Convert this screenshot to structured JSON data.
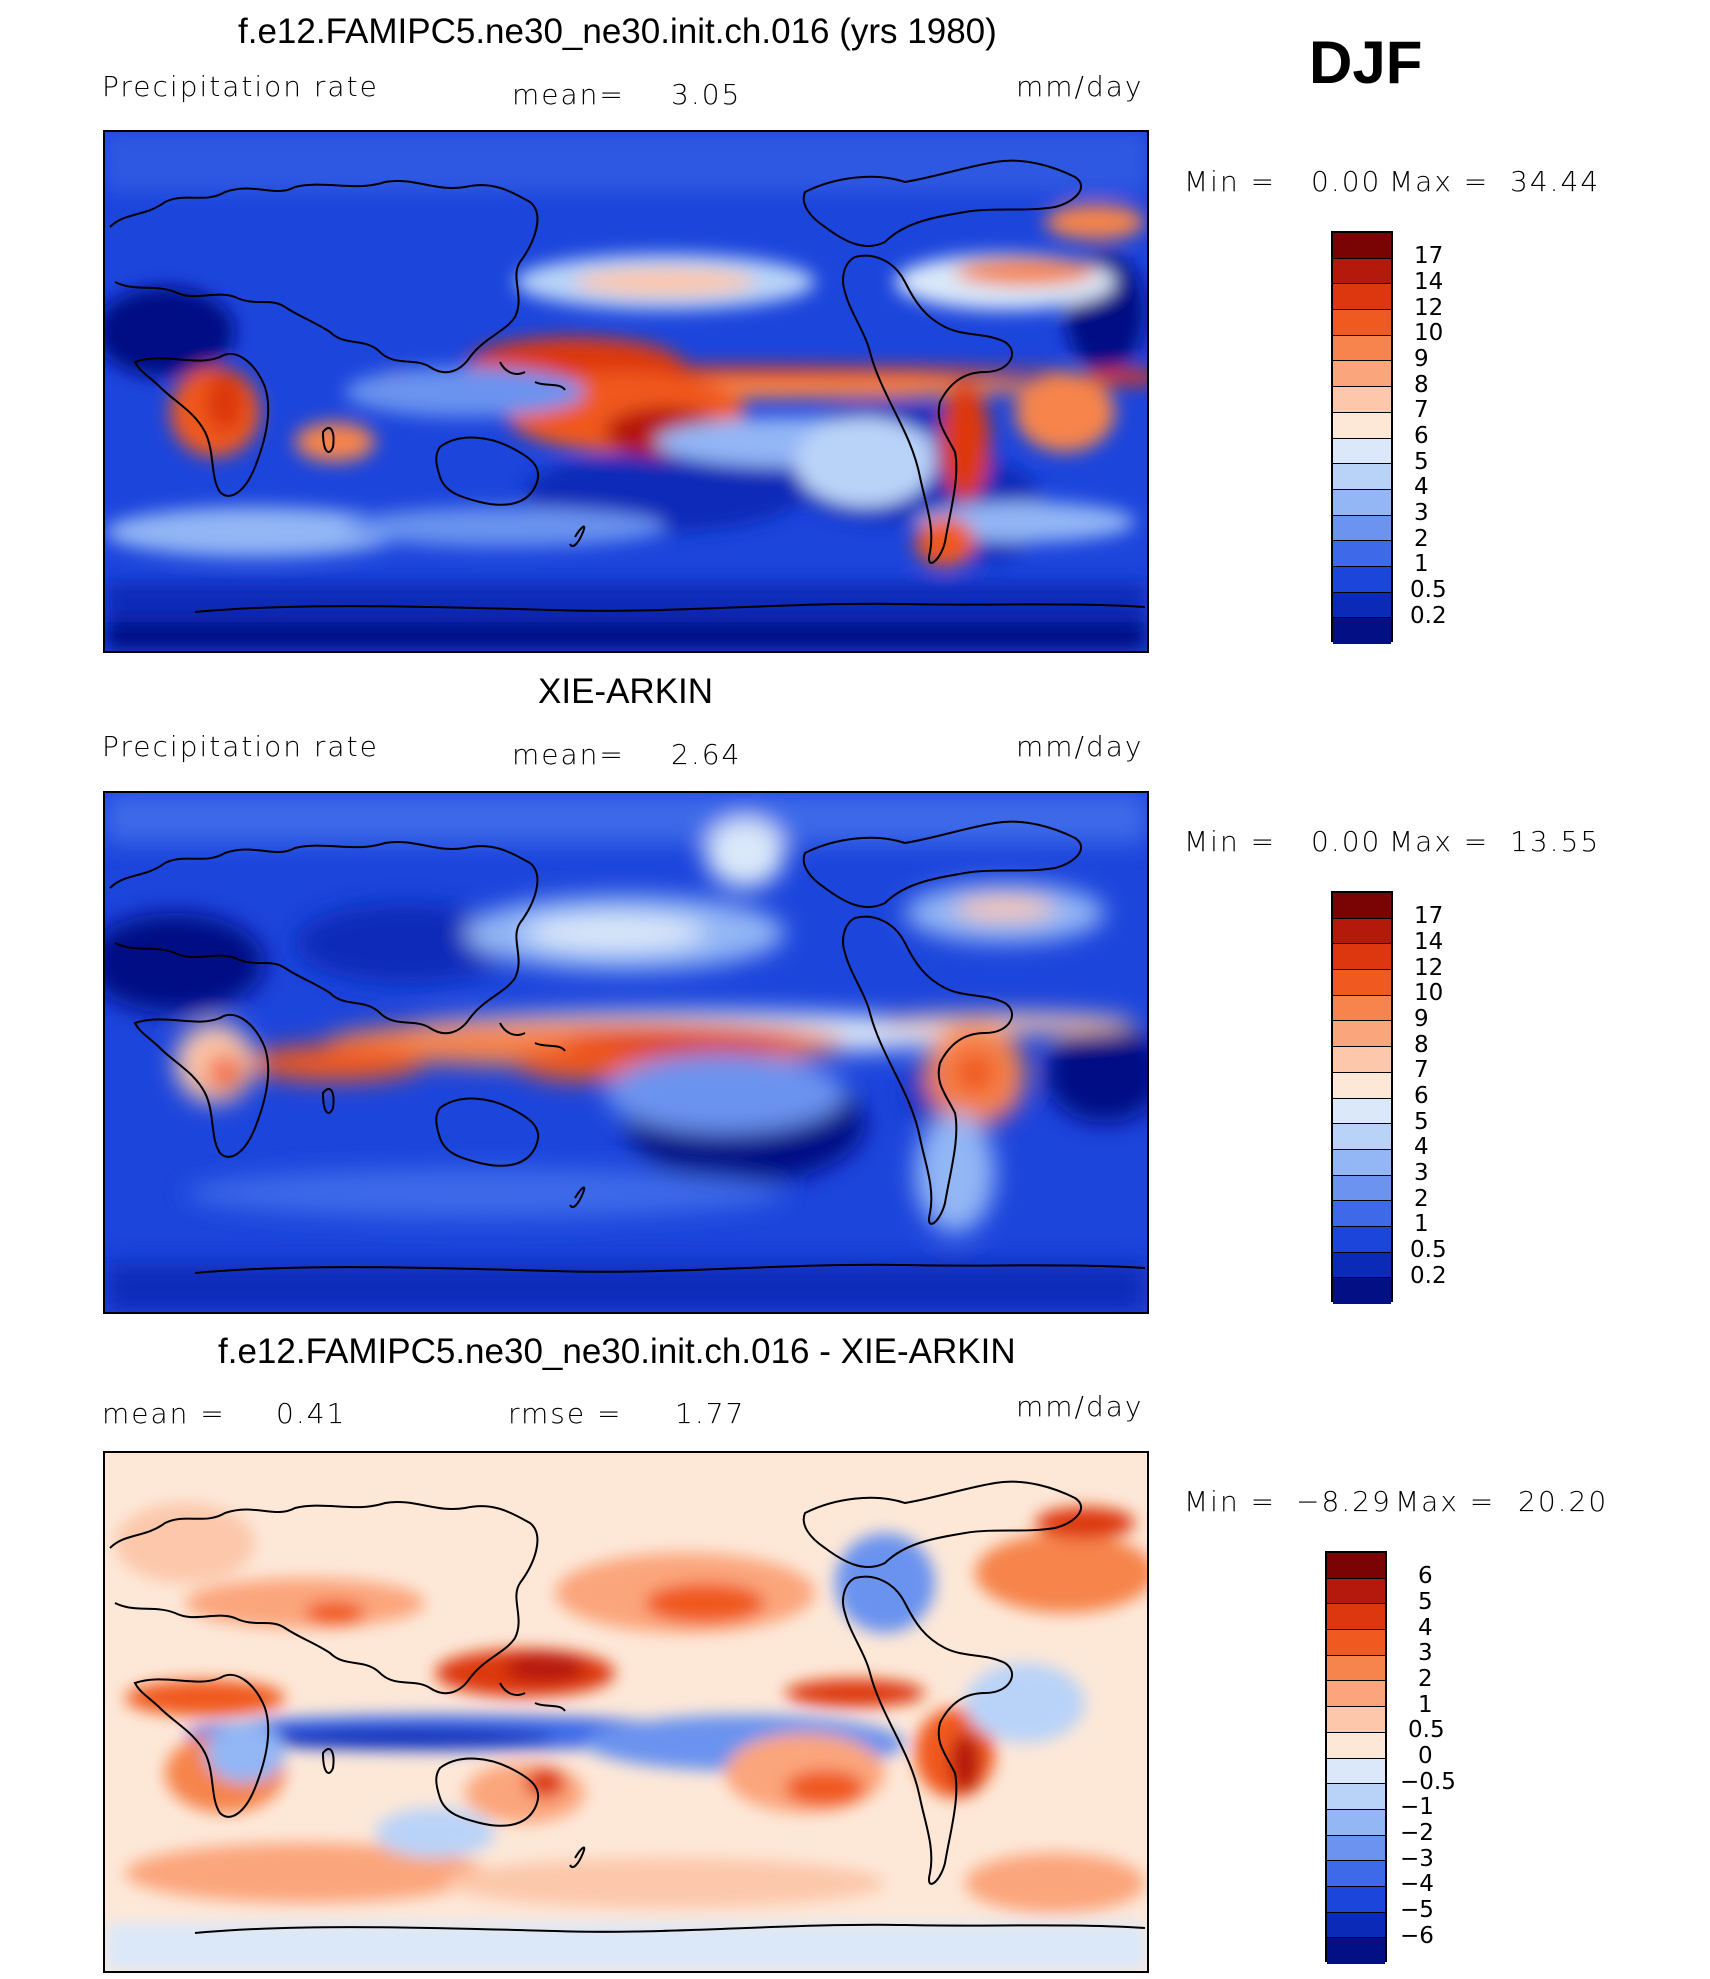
{
  "season": "DJF",
  "panels": [
    {
      "title": "f.e12.FAMIPC5.ne30_ne30.init.ch.016 (yrs 1980)",
      "left_label": "Precipitation  rate",
      "mid_label": "mean=",
      "mid_value": "3.05",
      "units": "mm/day",
      "min_label": "Min  =",
      "min_value": "0.00",
      "max_label": "Max  =",
      "max_value": "34.44",
      "colorbar_levels": [
        "17",
        "14",
        "12",
        "10",
        "9",
        "8",
        "7",
        "6",
        "5",
        "4",
        "3",
        "2",
        "1",
        "0.5",
        "0.2"
      ],
      "colorbar_colors": [
        "#7a0403",
        "#b5190b",
        "#dd3710",
        "#f0591f",
        "#f6844c",
        "#fba57c",
        "#fcc7aa",
        "#fde8d8",
        "#dae8f9",
        "#b9d3f8",
        "#93b6f5",
        "#6b93ef",
        "#3e6ae9",
        "#1c45dc",
        "#0b2ab8",
        "#030f84"
      ]
    },
    {
      "title": "XIE-ARKIN",
      "left_label": "Precipitation  rate",
      "mid_label": "mean=",
      "mid_value": "2.64",
      "units": "mm/day",
      "min_label": "Min  =",
      "min_value": "0.00",
      "max_label": "Max  =",
      "max_value": "13.55",
      "colorbar_levels": [
        "17",
        "14",
        "12",
        "10",
        "9",
        "8",
        "7",
        "6",
        "5",
        "4",
        "3",
        "2",
        "1",
        "0.5",
        "0.2"
      ],
      "colorbar_colors": [
        "#7a0403",
        "#b5190b",
        "#dd3710",
        "#f0591f",
        "#f6844c",
        "#fba57c",
        "#fcc7aa",
        "#fde8d8",
        "#dae8f9",
        "#b9d3f8",
        "#93b6f5",
        "#6b93ef",
        "#3e6ae9",
        "#1c45dc",
        "#0b2ab8",
        "#030f84"
      ]
    },
    {
      "title": "f.e12.FAMIPC5.ne30_ne30.init.ch.016 - XIE-ARKIN",
      "left_label": "mean  =",
      "left_value": "0.41",
      "mid_label": "rmse  =",
      "mid_value": "1.77",
      "units": "mm/day",
      "min_label": "Min  =",
      "min_value": "−8.29",
      "max_label": "Max  =",
      "max_value": "20.20",
      "colorbar_levels": [
        "6",
        "5",
        "4",
        "3",
        "2",
        "1",
        "0.5",
        "0",
        "−0.5",
        "−1",
        "−2",
        "−3",
        "−4",
        "−5",
        "−6"
      ],
      "colorbar_colors": [
        "#7a0403",
        "#b5190b",
        "#dd3710",
        "#f0591f",
        "#f6844c",
        "#fba57c",
        "#fcc7aa",
        "#fde8d8",
        "#dae8f9",
        "#b9d3f8",
        "#93b6f5",
        "#6b93ef",
        "#3e6ae9",
        "#1c45dc",
        "#0b2ab8",
        "#030f84"
      ]
    }
  ]
}
